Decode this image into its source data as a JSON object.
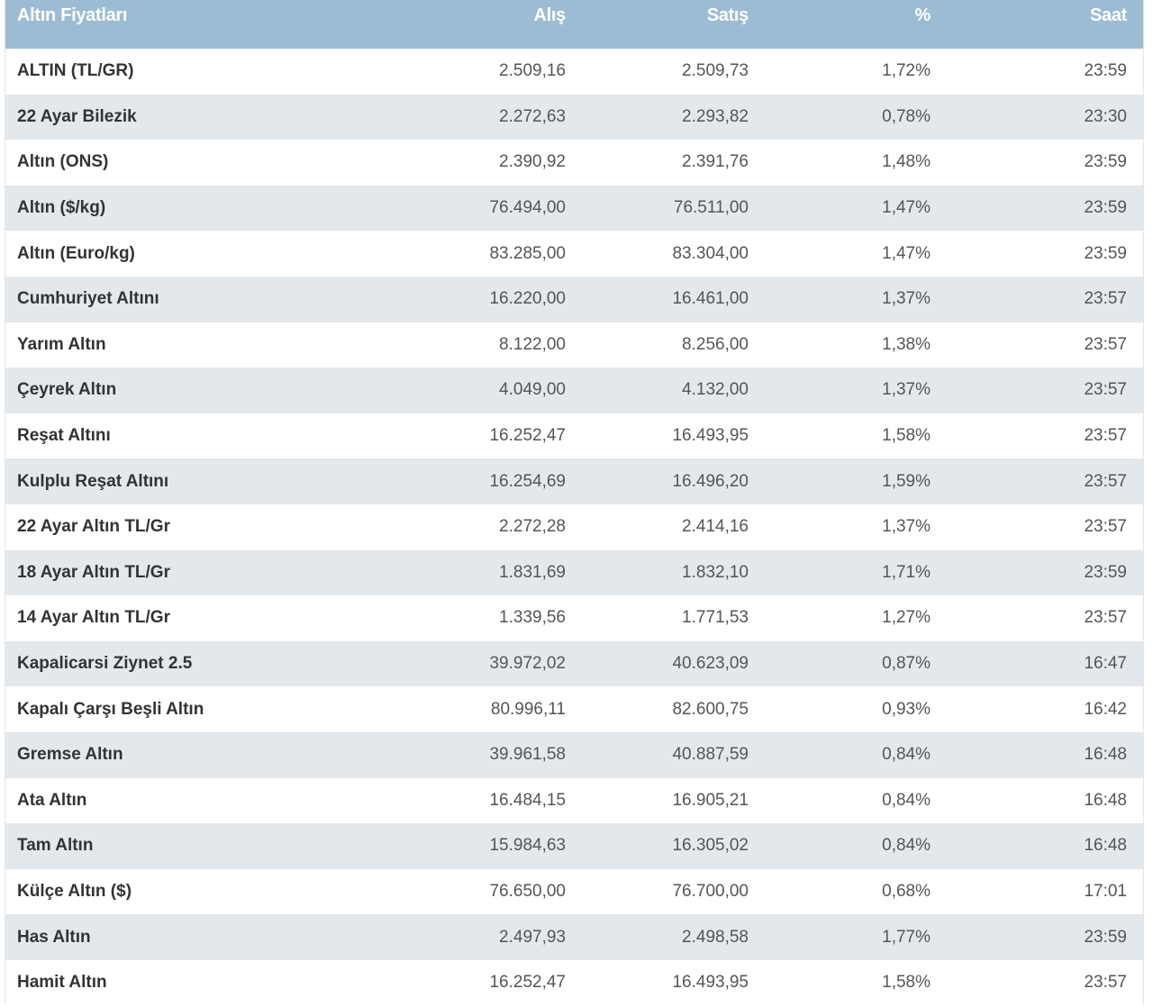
{
  "table": {
    "title": "Altın Fiyatları",
    "columns": {
      "name": "Altın Fiyatları",
      "buy": "Alış",
      "sell": "Satış",
      "change": "%",
      "time": "Saat"
    },
    "colors": {
      "header_bg": "#9cbcd4",
      "header_text": "#ffffff",
      "row_alt_bg": "#e3e8ec",
      "row_bg": "#ffffff"
    },
    "rows": [
      {
        "name": "ALTIN (TL/GR)",
        "buy": "2.509,16",
        "sell": "2.509,73",
        "change": "1,72%",
        "time": "23:59"
      },
      {
        "name": "22 Ayar Bilezik",
        "buy": "2.272,63",
        "sell": "2.293,82",
        "change": "0,78%",
        "time": "23:30"
      },
      {
        "name": "Altın (ONS)",
        "buy": "2.390,92",
        "sell": "2.391,76",
        "change": "1,48%",
        "time": "23:59"
      },
      {
        "name": "Altın ($/kg)",
        "buy": "76.494,00",
        "sell": "76.511,00",
        "change": "1,47%",
        "time": "23:59"
      },
      {
        "name": "Altın (Euro/kg)",
        "buy": "83.285,00",
        "sell": "83.304,00",
        "change": "1,47%",
        "time": "23:59"
      },
      {
        "name": "Cumhuriyet Altını",
        "buy": "16.220,00",
        "sell": "16.461,00",
        "change": "1,37%",
        "time": "23:57"
      },
      {
        "name": "Yarım Altın",
        "buy": "8.122,00",
        "sell": "8.256,00",
        "change": "1,38%",
        "time": "23:57"
      },
      {
        "name": "Çeyrek Altın",
        "buy": "4.049,00",
        "sell": "4.132,00",
        "change": "1,37%",
        "time": "23:57"
      },
      {
        "name": "Reşat Altını",
        "buy": "16.252,47",
        "sell": "16.493,95",
        "change": "1,58%",
        "time": "23:57"
      },
      {
        "name": "Kulplu Reşat Altını",
        "buy": "16.254,69",
        "sell": "16.496,20",
        "change": "1,59%",
        "time": "23:57"
      },
      {
        "name": "22 Ayar Altın TL/Gr",
        "buy": "2.272,28",
        "sell": "2.414,16",
        "change": "1,37%",
        "time": "23:57"
      },
      {
        "name": "18 Ayar Altın TL/Gr",
        "buy": "1.831,69",
        "sell": "1.832,10",
        "change": "1,71%",
        "time": "23:59"
      },
      {
        "name": "14 Ayar Altın TL/Gr",
        "buy": "1.339,56",
        "sell": "1.771,53",
        "change": "1,27%",
        "time": "23:57"
      },
      {
        "name": "Kapalicarsi Ziynet 2.5",
        "buy": "39.972,02",
        "sell": "40.623,09",
        "change": "0,87%",
        "time": "16:47"
      },
      {
        "name": "Kapalı Çarşı Beşli Altın",
        "buy": "80.996,11",
        "sell": "82.600,75",
        "change": "0,93%",
        "time": "16:42"
      },
      {
        "name": "Gremse Altın",
        "buy": "39.961,58",
        "sell": "40.887,59",
        "change": "0,84%",
        "time": "16:48"
      },
      {
        "name": "Ata Altın",
        "buy": "16.484,15",
        "sell": "16.905,21",
        "change": "0,84%",
        "time": "16:48"
      },
      {
        "name": "Tam Altın",
        "buy": "15.984,63",
        "sell": "16.305,02",
        "change": "0,84%",
        "time": "16:48"
      },
      {
        "name": "Külçe Altın ($)",
        "buy": "76.650,00",
        "sell": "76.700,00",
        "change": "0,68%",
        "time": "17:01"
      },
      {
        "name": "Has Altın",
        "buy": "2.497,93",
        "sell": "2.498,58",
        "change": "1,77%",
        "time": "23:59"
      },
      {
        "name": "Hamit Altın",
        "buy": "16.252,47",
        "sell": "16.493,95",
        "change": "1,58%",
        "time": "23:57"
      }
    ]
  }
}
